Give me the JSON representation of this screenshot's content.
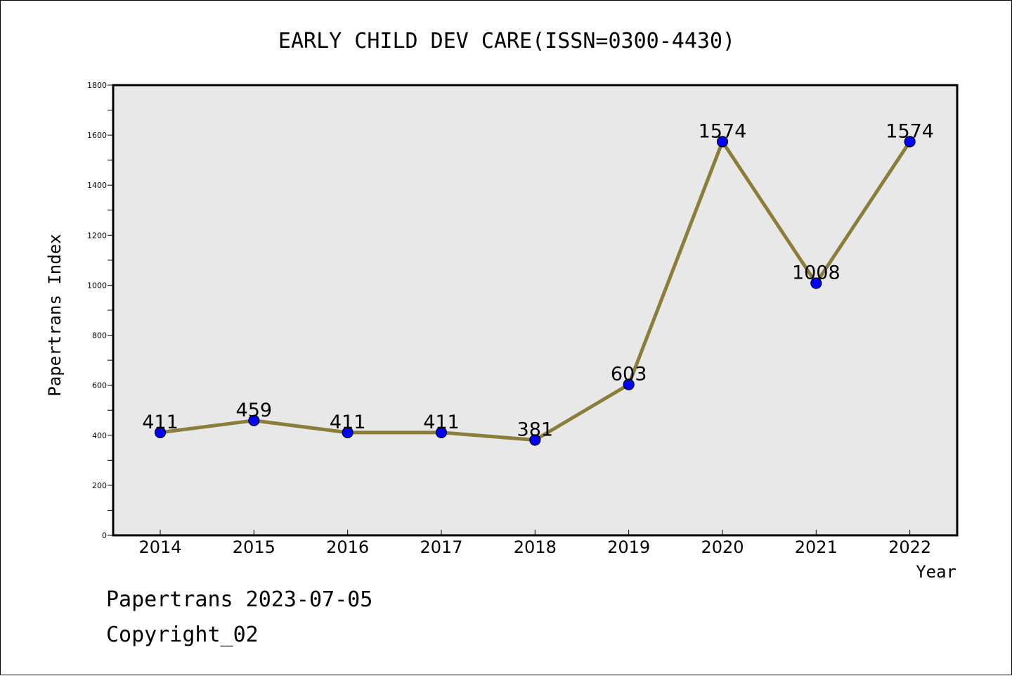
{
  "chart_data": {
    "type": "line",
    "title": "EARLY CHILD DEV CARE(ISSN=0300-4430)",
    "xlabel": "Year",
    "ylabel": "Papertrans Index",
    "categories": [
      "2014",
      "2015",
      "2016",
      "2017",
      "2018",
      "2019",
      "2020",
      "2021",
      "2022"
    ],
    "values": [
      411,
      459,
      411,
      411,
      381,
      603,
      1574,
      1008,
      1574
    ],
    "data_labels": [
      "411",
      "459",
      "411",
      "411",
      "381",
      "603",
      "1574",
      "1008",
      "1574"
    ],
    "ylim": [
      0,
      1800
    ],
    "yticks": [
      0,
      200,
      400,
      600,
      800,
      1000,
      1200,
      1400,
      1600,
      1800
    ],
    "ytick_labels": [
      "0",
      "200",
      "400",
      "600",
      "800",
      "1000",
      "1200",
      "1400",
      "1600",
      "1800"
    ],
    "grid": false,
    "legend": "none",
    "colors": {
      "line": "#8B7D3A",
      "marker": "#0000FF",
      "plot_background": "#E8E8E8"
    }
  },
  "footer": {
    "stamp": "Papertrans 2023-07-05",
    "copyright": "Copyright_02"
  }
}
